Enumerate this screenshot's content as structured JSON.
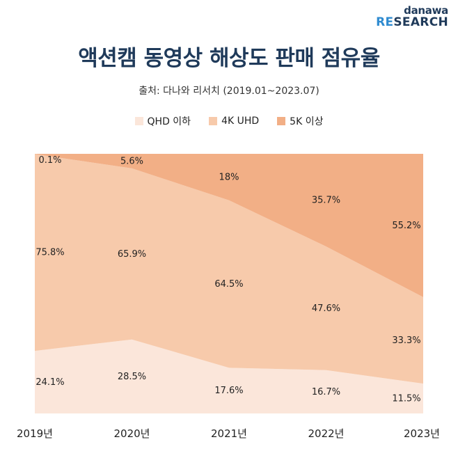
{
  "brand": {
    "top": "danawa",
    "bottom_accent": "RE",
    "bottom_rest": "SEARCH"
  },
  "title": "액션캠 동영상 해상도 판매 점유율",
  "source": "출처: 다나와 리서치 (2019.01~2023.07)",
  "colors": {
    "qhd": "#fbe6da",
    "uhd": "#f7caab",
    "k5": "#f2af86"
  },
  "legend": [
    {
      "label": "QHD 이하",
      "color": "#fbe6da"
    },
    {
      "label": "4K UHD",
      "color": "#f7caab"
    },
    {
      "label": "5K 이상",
      "color": "#f2af86"
    }
  ],
  "chart_data": {
    "type": "area",
    "stacked": true,
    "normalized": true,
    "categories": [
      "2019년",
      "2020년",
      "2021년",
      "2022년",
      "2023년"
    ],
    "series": [
      {
        "name": "QHD 이하",
        "values": [
          24.1,
          28.5,
          17.6,
          16.7,
          11.5
        ],
        "labels": [
          "24.1%",
          "28.5%",
          "17.6%",
          "16.7%",
          "11.5%"
        ]
      },
      {
        "name": "4K UHD",
        "values": [
          75.8,
          65.9,
          64.5,
          47.6,
          33.3
        ],
        "labels": [
          "75.8%",
          "65.9%",
          "64.5%",
          "47.6%",
          "33.3%"
        ]
      },
      {
        "name": "5K 이상",
        "values": [
          0.1,
          5.6,
          18,
          35.7,
          55.2
        ],
        "labels": [
          "0.1%",
          "5.6%",
          "18%",
          "35.7%",
          "55.2%"
        ]
      }
    ],
    "ylim": [
      0,
      100
    ],
    "title": "액션캠 동영상 해상도 판매 점유율",
    "legend_position": "top-center"
  }
}
